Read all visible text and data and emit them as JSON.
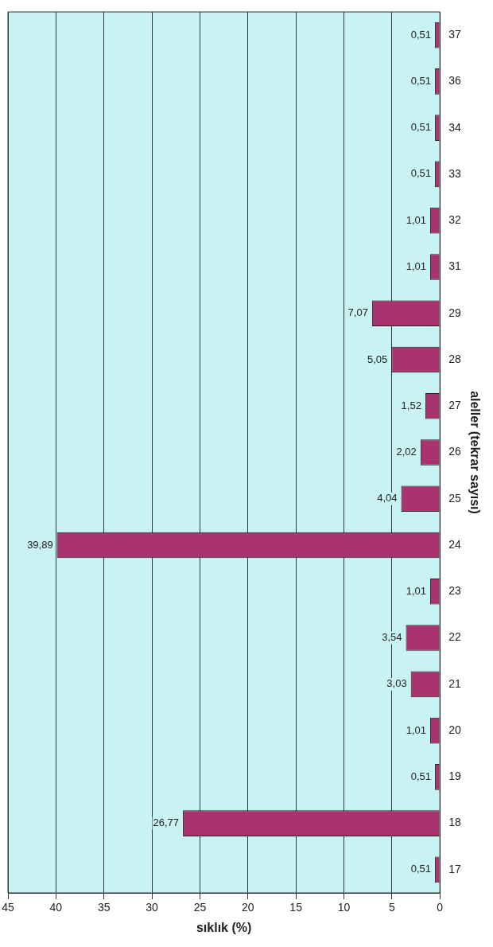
{
  "chart_data": {
    "type": "bar",
    "orientation": "horizontal",
    "xlabel": "sıklık (%)",
    "ylabel": "aleller (tekrar sayısı)",
    "categories": [
      "37",
      "36",
      "34",
      "33",
      "32",
      "31",
      "29",
      "28",
      "27",
      "26",
      "25",
      "24",
      "23",
      "22",
      "21",
      "20",
      "19",
      "18",
      "17"
    ],
    "values": [
      0.51,
      0.51,
      0.51,
      0.51,
      1.01,
      1.01,
      7.07,
      5.05,
      1.52,
      2.02,
      4.04,
      39.89,
      1.01,
      3.54,
      3.03,
      1.01,
      0.51,
      26.77,
      0.51
    ],
    "value_labels": [
      "0,51",
      "0,51",
      "0,51",
      "0,51",
      "1,01",
      "1,01",
      "7,07",
      "5,05",
      "1,52",
      "2,02",
      "4,04",
      "39,89",
      "1,01",
      "3,54",
      "3,03",
      "1,01",
      "0,51",
      "26,77",
      "0,51"
    ],
    "color": "#a8336e",
    "xlim": [
      45,
      0
    ],
    "xticks": [
      0,
      5,
      10,
      15,
      20,
      25,
      30,
      35,
      40,
      45
    ],
    "grid": "x",
    "legend": false
  }
}
